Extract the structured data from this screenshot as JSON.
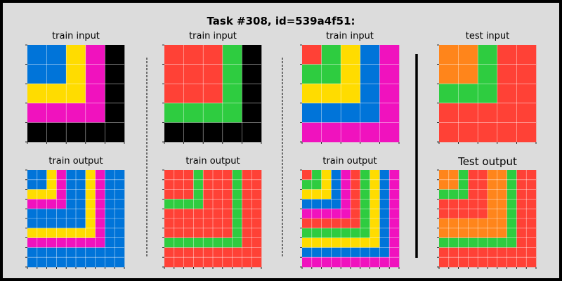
{
  "title": "Task #308, id=539a4f51:",
  "colors": {
    "0": "#000000",
    "1": "#0074d9",
    "2": "#ff4136",
    "3": "#2ecc40",
    "4": "#ffdc00",
    "6": "#f012be",
    "7": "#ff851b",
    "grid_line": "#ffffff",
    "tick": "#000000",
    "background": "#dcdcdc"
  },
  "panels": [
    {
      "label": "train input",
      "grid": [
        [
          1,
          1,
          4,
          6,
          0
        ],
        [
          1,
          1,
          4,
          6,
          0
        ],
        [
          4,
          4,
          4,
          6,
          0
        ],
        [
          6,
          6,
          6,
          6,
          0
        ],
        [
          0,
          0,
          0,
          0,
          0
        ]
      ]
    },
    {
      "label": "train input",
      "grid": [
        [
          2,
          2,
          2,
          3,
          0
        ],
        [
          2,
          2,
          2,
          3,
          0
        ],
        [
          2,
          2,
          2,
          3,
          0
        ],
        [
          3,
          3,
          3,
          3,
          0
        ],
        [
          0,
          0,
          0,
          0,
          0
        ]
      ]
    },
    {
      "label": "train input",
      "grid": [
        [
          2,
          3,
          4,
          1,
          6
        ],
        [
          3,
          3,
          4,
          1,
          6
        ],
        [
          4,
          4,
          4,
          1,
          6
        ],
        [
          1,
          1,
          1,
          1,
          6
        ],
        [
          6,
          6,
          6,
          6,
          6
        ]
      ]
    },
    {
      "label": "test input",
      "grid": [
        [
          7,
          7,
          3,
          2,
          2
        ],
        [
          7,
          7,
          3,
          2,
          2
        ],
        [
          3,
          3,
          3,
          2,
          2
        ],
        [
          2,
          2,
          2,
          2,
          2
        ],
        [
          2,
          2,
          2,
          2,
          2
        ]
      ]
    },
    {
      "label": "train output",
      "grid": [
        [
          1,
          1,
          4,
          6,
          1,
          1,
          4,
          6,
          1,
          1
        ],
        [
          1,
          1,
          4,
          6,
          1,
          1,
          4,
          6,
          1,
          1
        ],
        [
          4,
          4,
          4,
          6,
          1,
          1,
          4,
          6,
          1,
          1
        ],
        [
          6,
          6,
          6,
          6,
          1,
          1,
          4,
          6,
          1,
          1
        ],
        [
          1,
          1,
          1,
          1,
          1,
          1,
          4,
          6,
          1,
          1
        ],
        [
          1,
          1,
          1,
          1,
          1,
          1,
          4,
          6,
          1,
          1
        ],
        [
          4,
          4,
          4,
          4,
          4,
          4,
          4,
          6,
          1,
          1
        ],
        [
          6,
          6,
          6,
          6,
          6,
          6,
          6,
          6,
          1,
          1
        ],
        [
          1,
          1,
          1,
          1,
          1,
          1,
          1,
          1,
          1,
          1
        ],
        [
          1,
          1,
          1,
          1,
          1,
          1,
          1,
          1,
          1,
          1
        ]
      ]
    },
    {
      "label": "train output",
      "grid": [
        [
          2,
          2,
          2,
          3,
          2,
          2,
          2,
          3,
          2,
          2
        ],
        [
          2,
          2,
          2,
          3,
          2,
          2,
          2,
          3,
          2,
          2
        ],
        [
          2,
          2,
          2,
          3,
          2,
          2,
          2,
          3,
          2,
          2
        ],
        [
          3,
          3,
          3,
          3,
          2,
          2,
          2,
          3,
          2,
          2
        ],
        [
          2,
          2,
          2,
          2,
          2,
          2,
          2,
          3,
          2,
          2
        ],
        [
          2,
          2,
          2,
          2,
          2,
          2,
          2,
          3,
          2,
          2
        ],
        [
          2,
          2,
          2,
          2,
          2,
          2,
          2,
          3,
          2,
          2
        ],
        [
          3,
          3,
          3,
          3,
          3,
          3,
          3,
          3,
          2,
          2
        ],
        [
          2,
          2,
          2,
          2,
          2,
          2,
          2,
          2,
          2,
          2
        ],
        [
          2,
          2,
          2,
          2,
          2,
          2,
          2,
          2,
          2,
          2
        ]
      ]
    },
    {
      "label": "train output",
      "grid": [
        [
          2,
          3,
          4,
          1,
          6,
          2,
          3,
          4,
          1,
          6
        ],
        [
          3,
          3,
          4,
          1,
          6,
          2,
          3,
          4,
          1,
          6
        ],
        [
          4,
          4,
          4,
          1,
          6,
          2,
          3,
          4,
          1,
          6
        ],
        [
          1,
          1,
          1,
          1,
          6,
          2,
          3,
          4,
          1,
          6
        ],
        [
          6,
          6,
          6,
          6,
          6,
          2,
          3,
          4,
          1,
          6
        ],
        [
          2,
          2,
          2,
          2,
          2,
          2,
          3,
          4,
          1,
          6
        ],
        [
          3,
          3,
          3,
          3,
          3,
          3,
          3,
          4,
          1,
          6
        ],
        [
          4,
          4,
          4,
          4,
          4,
          4,
          4,
          4,
          1,
          6
        ],
        [
          1,
          1,
          1,
          1,
          1,
          1,
          1,
          1,
          1,
          6
        ],
        [
          6,
          6,
          6,
          6,
          6,
          6,
          6,
          6,
          6,
          6
        ]
      ]
    },
    {
      "label": "Test output",
      "grid": [
        [
          7,
          7,
          3,
          2,
          2,
          7,
          7,
          3,
          2,
          2
        ],
        [
          7,
          7,
          3,
          2,
          2,
          7,
          7,
          3,
          2,
          2
        ],
        [
          3,
          3,
          3,
          2,
          2,
          7,
          7,
          3,
          2,
          2
        ],
        [
          2,
          2,
          2,
          2,
          2,
          7,
          7,
          3,
          2,
          2
        ],
        [
          2,
          2,
          2,
          2,
          2,
          7,
          7,
          3,
          2,
          2
        ],
        [
          7,
          7,
          7,
          7,
          7,
          7,
          7,
          3,
          2,
          2
        ],
        [
          7,
          7,
          7,
          7,
          7,
          7,
          7,
          3,
          2,
          2
        ],
        [
          3,
          3,
          3,
          3,
          3,
          3,
          3,
          3,
          2,
          2
        ],
        [
          2,
          2,
          2,
          2,
          2,
          2,
          2,
          2,
          2,
          2
        ],
        [
          2,
          2,
          2,
          2,
          2,
          2,
          2,
          2,
          2,
          2
        ]
      ]
    }
  ]
}
